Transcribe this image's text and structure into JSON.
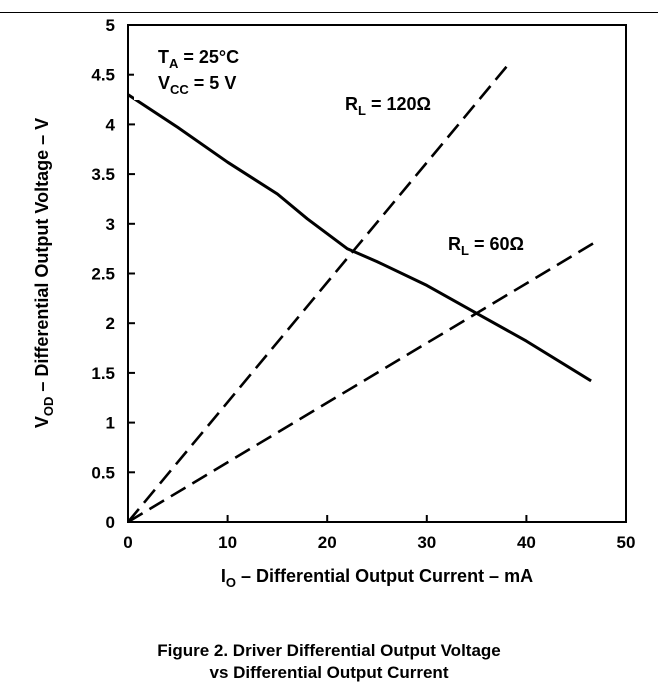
{
  "chart_data": {
    "type": "line",
    "xlabel": {
      "prefix": "I",
      "sub": "O",
      "rest": " – Differential Output Current – mA"
    },
    "ylabel": {
      "prefix": "V",
      "sub": "OD",
      "rest": " – Differential Output Voltage – V"
    },
    "xlim": [
      0,
      50
    ],
    "ylim": [
      0,
      5
    ],
    "x_ticks": [
      "0",
      "10",
      "20",
      "30",
      "40",
      "50"
    ],
    "y_ticks": [
      "0",
      "0.5",
      "1",
      "1.5",
      "2",
      "2.5",
      "3",
      "3.5",
      "4",
      "4.5",
      "5"
    ],
    "grid": false,
    "conditions": [
      {
        "prefix": "T",
        "sub": "A",
        "rest": " = 25°C"
      },
      {
        "prefix": "V",
        "sub": "CC",
        "rest": " = 5 V"
      }
    ],
    "series": [
      {
        "style": "solid",
        "points": [
          [
            0,
            4.3
          ],
          [
            5,
            3.97
          ],
          [
            10,
            3.62
          ],
          [
            15,
            3.3
          ],
          [
            18,
            3.05
          ],
          [
            20,
            2.9
          ],
          [
            22,
            2.75
          ],
          [
            25,
            2.62
          ],
          [
            30,
            2.38
          ],
          [
            35,
            2.1
          ],
          [
            40,
            1.82
          ],
          [
            46.5,
            1.42
          ]
        ]
      },
      {
        "style": "dashed",
        "label": {
          "prefix": "R",
          "sub": "L",
          "rest": " = 120Ω"
        },
        "points": [
          [
            0,
            0
          ],
          [
            38,
            4.58
          ]
        ]
      },
      {
        "style": "dashed",
        "label": {
          "prefix": "R",
          "sub": "L",
          "rest": " = 60Ω"
        },
        "points": [
          [
            0,
            0
          ],
          [
            47,
            2.82
          ]
        ]
      }
    ]
  },
  "caption": {
    "line1": "Figure 2. Driver Differential Output Voltage",
    "line2": "vs Differential Output Current"
  }
}
